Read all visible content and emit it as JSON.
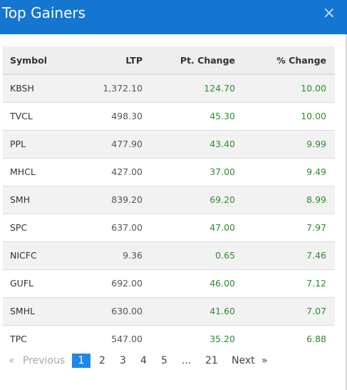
{
  "modal": {
    "title": "Top Gainers",
    "close_symbol": "×",
    "accent_color": "#1576d2"
  },
  "table": {
    "headers": [
      "Symbol",
      "LTP",
      "Pt. Change",
      "% Change"
    ],
    "rows": [
      {
        "symbol": "KBSH",
        "ltp": "1,372.10",
        "pt_change": "124.70",
        "pct_change": "10.00"
      },
      {
        "symbol": "TVCL",
        "ltp": "498.30",
        "pt_change": "45.30",
        "pct_change": "10.00"
      },
      {
        "symbol": "PPL",
        "ltp": "477.90",
        "pt_change": "43.40",
        "pct_change": "9.99"
      },
      {
        "symbol": "MHCL",
        "ltp": "427.00",
        "pt_change": "37.00",
        "pct_change": "9.49"
      },
      {
        "symbol": "SMH",
        "ltp": "839.20",
        "pt_change": "69.20",
        "pct_change": "8.99"
      },
      {
        "symbol": "SPC",
        "ltp": "637.00",
        "pt_change": "47.00",
        "pct_change": "7.97"
      },
      {
        "symbol": "NICFC",
        "ltp": "9.36",
        "pt_change": "0.65",
        "pct_change": "7.46"
      },
      {
        "symbol": "GUFL",
        "ltp": "692.00",
        "pt_change": "46.00",
        "pct_change": "7.12"
      },
      {
        "symbol": "SMHL",
        "ltp": "630.00",
        "pt_change": "41.60",
        "pct_change": "7.07"
      },
      {
        "symbol": "TPC",
        "ltp": "547.00",
        "pt_change": "35.20",
        "pct_change": "6.88"
      }
    ],
    "positive_color": "#2e8b2e"
  },
  "pagination": {
    "first_symbol": "«",
    "previous": "Previous",
    "pages": [
      "1",
      "2",
      "3",
      "4",
      "5"
    ],
    "ellipsis": "...",
    "last_page": "21",
    "next": "Next",
    "next_symbol": "»",
    "active_page": "1"
  }
}
